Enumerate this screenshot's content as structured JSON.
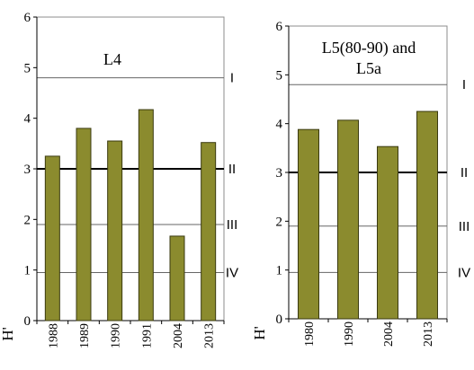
{
  "chart_data": [
    {
      "type": "bar",
      "title": "L4",
      "ylabel": "H'",
      "xlabel": "",
      "ylim": [
        0,
        6
      ],
      "yticks": [
        "0",
        "1",
        "2",
        "3",
        "4",
        "5",
        "6"
      ],
      "categories": [
        "1988",
        "1989",
        "1990",
        "1991",
        "2004",
        "2013"
      ],
      "values": [
        3.25,
        3.8,
        3.55,
        4.17,
        1.67,
        3.52
      ],
      "bar_color": "#8b8b2e",
      "class_lines": [
        {
          "value": 4.8,
          "label": "I",
          "bold": false
        },
        {
          "value": 3.0,
          "label": "II",
          "bold": true
        },
        {
          "value": 1.9,
          "label": "III",
          "bold": false
        },
        {
          "value": 0.95,
          "label": "IV",
          "bold": false
        }
      ]
    },
    {
      "type": "bar",
      "title": "L5(80-90) and L5a",
      "title_lines": [
        "L5(80-90) and",
        "L5a"
      ],
      "ylabel": "H'",
      "xlabel": "",
      "ylim": [
        0,
        6
      ],
      "yticks": [
        "0",
        "1",
        "2",
        "3",
        "4",
        "5",
        "6"
      ],
      "categories": [
        "1980",
        "1990",
        "2004",
        "2013"
      ],
      "values": [
        3.88,
        4.07,
        3.53,
        4.25
      ],
      "bar_color": "#8b8b2e",
      "class_lines": [
        {
          "value": 4.8,
          "label": "I",
          "bold": false
        },
        {
          "value": 3.0,
          "label": "II",
          "bold": true
        },
        {
          "value": 1.9,
          "label": "III",
          "bold": false
        },
        {
          "value": 0.95,
          "label": "IV",
          "bold": false
        }
      ]
    }
  ]
}
